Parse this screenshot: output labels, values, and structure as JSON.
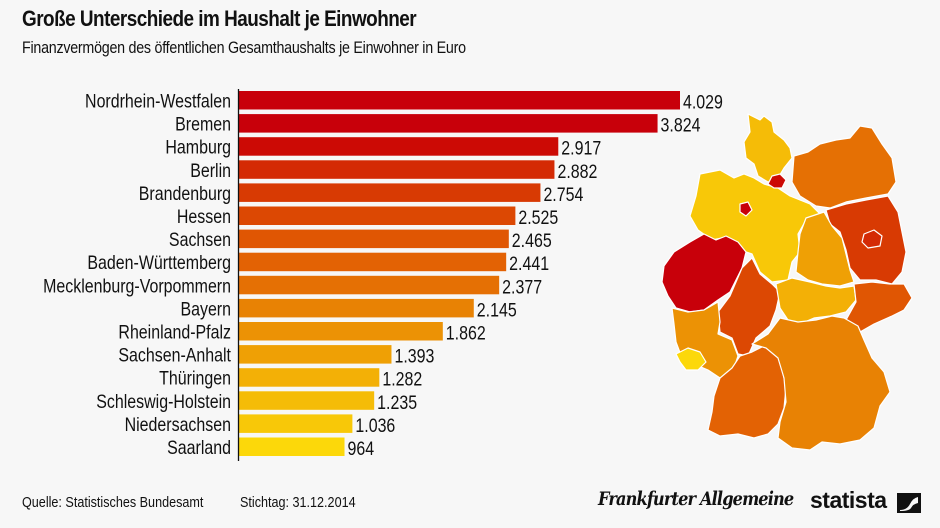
{
  "chart_data": {
    "type": "bar",
    "orientation": "horizontal",
    "title": "Große Unterschiede im Haushalt je Einwohner",
    "subtitle": "Finanzvermögen des öffentlichen Gesamthaushalts je Einwohner in Euro",
    "xlabel": "",
    "ylabel": "",
    "xlim": [
      0,
      4029
    ],
    "grid": false,
    "categories": [
      "Nordrhein-Westfalen",
      "Bremen",
      "Hamburg",
      "Berlin",
      "Brandenburg",
      "Hessen",
      "Sachsen",
      "Baden-Württemberg",
      "Mecklenburg-Vorpommern",
      "Bayern",
      "Rheinland-Pfalz",
      "Sachsen-Anhalt",
      "Thüringen",
      "Schleswig-Holstein",
      "Niedersachsen",
      "Saarland"
    ],
    "values": [
      4029,
      3824,
      2917,
      2882,
      2754,
      2525,
      2465,
      2441,
      2377,
      2145,
      1862,
      1393,
      1282,
      1235,
      1036,
      964
    ],
    "value_labels": [
      "4.029",
      "3.824",
      "2.917",
      "2.882",
      "2.754",
      "2.525",
      "2.465",
      "2.441",
      "2.377",
      "2.145",
      "1.862",
      "1.393",
      "1.282",
      "1.235",
      "1.036",
      "964"
    ],
    "bar_colors": [
      "#c8000a",
      "#c8000a",
      "#cc0a05",
      "#d42a04",
      "#d83a03",
      "#dc4803",
      "#e05603",
      "#e36204",
      "#e57004",
      "#e88204",
      "#ec9205",
      "#efa005",
      "#f3b006",
      "#f5bc07",
      "#f8c808",
      "#fcd80a"
    ]
  },
  "header": {
    "title": "Große Unterschiede im Haushalt je Einwohner",
    "subtitle": "Finanzvermögen des öffentlichen Gesamthaushalts je Einwohner in Euro"
  },
  "map": {
    "label": "Deutschland – Bundesländer nach Finanzvermögen je Einwohner",
    "regions": [
      {
        "name": "Schleswig-Holstein",
        "color": "#f5bc07"
      },
      {
        "name": "Hamburg",
        "color": "#cc0a05"
      },
      {
        "name": "Bremen",
        "color": "#c8000a"
      },
      {
        "name": "Niedersachsen",
        "color": "#f8c808"
      },
      {
        "name": "Mecklenburg-Vorpommern",
        "color": "#e57004"
      },
      {
        "name": "Brandenburg",
        "color": "#d83a03"
      },
      {
        "name": "Berlin",
        "color": "#d42a04"
      },
      {
        "name": "Sachsen-Anhalt",
        "color": "#efa005"
      },
      {
        "name": "Nordrhein-Westfalen",
        "color": "#c8000a"
      },
      {
        "name": "Hessen",
        "color": "#dc4803"
      },
      {
        "name": "Thüringen",
        "color": "#f3b006"
      },
      {
        "name": "Sachsen",
        "color": "#e05603"
      },
      {
        "name": "Rheinland-Pfalz",
        "color": "#ec9205"
      },
      {
        "name": "Saarland",
        "color": "#fcd80a"
      },
      {
        "name": "Baden-Württemberg",
        "color": "#e36204"
      },
      {
        "name": "Bayern",
        "color": "#e88204"
      }
    ]
  },
  "footer": {
    "source": "Quelle: Statistisches Bundesamt",
    "date": "Stichtag: 31.12.2014",
    "logo_faz": "Frankfurter Allgemeine",
    "logo_statista": "statista"
  }
}
